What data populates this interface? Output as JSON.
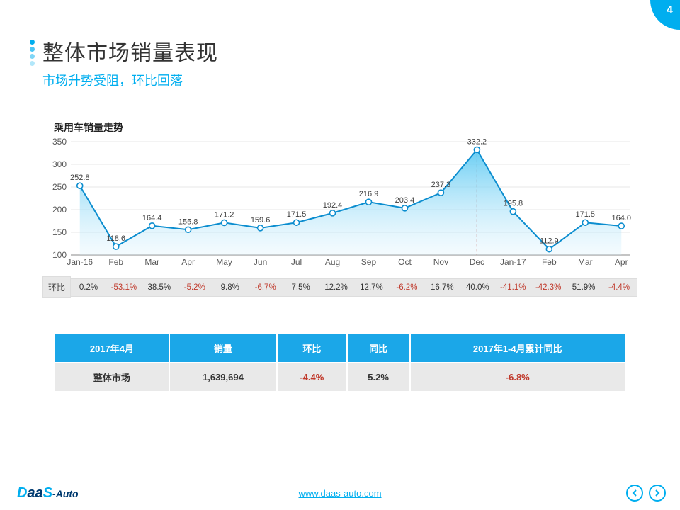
{
  "page_number": "4",
  "title": "整体市场销量表现",
  "subtitle": "市场升势受阻，环比回落",
  "chart": {
    "title": "乘用车销量走势",
    "type": "area-line",
    "categories": [
      "Jan-16",
      "Feb",
      "Mar",
      "Apr",
      "May",
      "Jun",
      "Jul",
      "Aug",
      "Sep",
      "Oct",
      "Nov",
      "Dec",
      "Jan-17",
      "Feb",
      "Mar",
      "Apr"
    ],
    "values": [
      252.8,
      118.6,
      164.4,
      155.8,
      171.2,
      159.6,
      171.5,
      192.4,
      216.9,
      203.4,
      237.3,
      332.2,
      195.8,
      112.9,
      171.5,
      164.0
    ],
    "ylim": [
      100,
      350
    ],
    "ytick_step": 50,
    "line_color": "#0b8dcf",
    "marker_fill": "#ffffff",
    "marker_stroke": "#0b8dcf",
    "fill_top_color": "#58c8f2",
    "fill_bottom_color": "#d3effc",
    "grid_color": "#d0d0d0",
    "axis_color": "#8a8a8a",
    "label_color": "#595959",
    "data_label_color": "#404040",
    "reference_line_index": 11,
    "reference_line_color": "#c0392b",
    "background_color": "#ffffff",
    "label_fontsize": 12,
    "data_label_fontsize": 11,
    "marker_radius": 4
  },
  "mom_row": {
    "label": "环比",
    "values": [
      "0.2%",
      "-53.1%",
      "38.5%",
      "-5.2%",
      "9.8%",
      "-6.7%",
      "7.5%",
      "12.2%",
      "12.7%",
      "-6.2%",
      "16.7%",
      "40.0%",
      "-41.1%",
      "-42.3%",
      "51.9%",
      "-4.4%"
    ],
    "bg_color": "#e8e8e8",
    "border_color": "#dddddd",
    "positive_color": "#333333",
    "negative_color": "#c0392b"
  },
  "summary": {
    "headers": [
      "2017年4月",
      "销量",
      "环比",
      "同比",
      "2017年1-4月累计同比"
    ],
    "row_label": "整体市场",
    "cells": [
      "1,639,694",
      "-4.4%",
      "5.2%",
      "-6.8%"
    ],
    "header_bg": "#1ba7e8",
    "row_bg": "#e9e9e9",
    "negative_color": "#c0392b",
    "positive_color": "#333333"
  },
  "footer": {
    "url_text": "www.daas-auto.com",
    "logo_prefix": "D",
    "logo_mid": "aa",
    "logo_s": "S",
    "logo_suffix": "-Auto"
  }
}
